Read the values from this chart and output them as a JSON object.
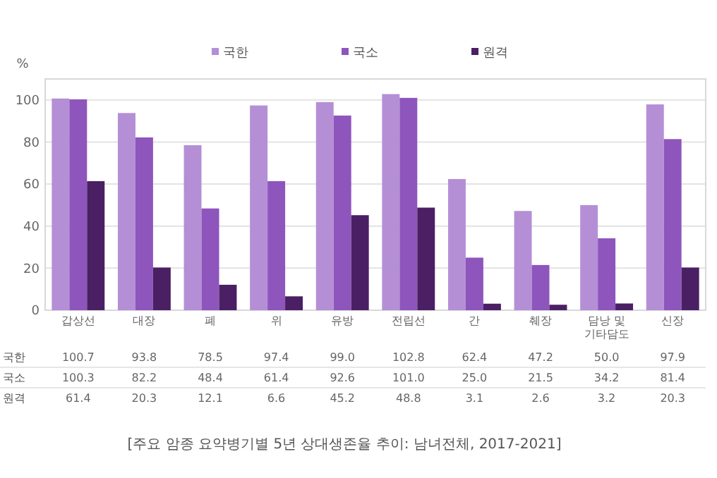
{
  "chart_data": {
    "type": "bar",
    "ylabel": "%",
    "categories": [
      "갑상선",
      "대장",
      "폐",
      "위",
      "유방",
      "전립선",
      "간",
      "췌장",
      "담낭 및 기타담도",
      "신장"
    ],
    "series": [
      {
        "name": "국한",
        "color": "#b48fd6",
        "values": [
          100.7,
          93.8,
          78.5,
          97.4,
          99.0,
          102.8,
          62.4,
          47.2,
          50.0,
          97.9
        ],
        "value_labels": [
          "100.7",
          "93.8",
          "78.5",
          "97.4",
          "99.0",
          "102.8",
          "62.4",
          "47.2",
          "50.0",
          "97.9"
        ]
      },
      {
        "name": "국소",
        "color": "#8e55bd",
        "values": [
          100.3,
          82.2,
          48.4,
          61.4,
          92.6,
          101.0,
          25.0,
          21.5,
          34.2,
          81.4
        ],
        "value_labels": [
          "100.3",
          "82.2",
          "48.4",
          "61.4",
          "92.6",
          "101.0",
          "25.0",
          "21.5",
          "34.2",
          "81.4"
        ]
      },
      {
        "name": "원격",
        "color": "#4a1f63",
        "values": [
          61.4,
          20.3,
          12.1,
          6.6,
          45.2,
          48.8,
          3.1,
          2.6,
          3.2,
          20.3
        ],
        "value_labels": [
          "61.4",
          "20.3",
          "12.1",
          "6.6",
          "45.2",
          "48.8",
          "3.1",
          "2.6",
          "3.2",
          "20.3"
        ]
      }
    ],
    "ylim": [
      0,
      110
    ],
    "yticks": [
      0,
      20,
      40,
      60,
      80,
      100
    ],
    "grid": "y",
    "legend": "top",
    "annotations": [
      "[주요 암종 요약병기별 5년 상대생존율 추이: 남녀전체, 2017-2021]"
    ]
  }
}
